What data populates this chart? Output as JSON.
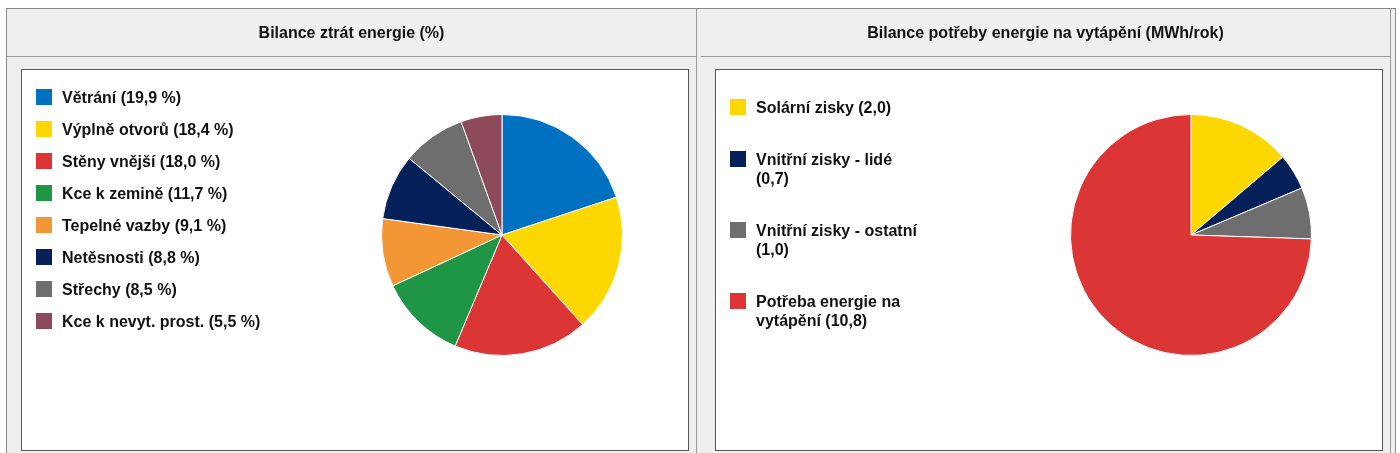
{
  "chart_data": [
    {
      "type": "pie",
      "title": "Bilance ztrát energie (%)",
      "legend": "left",
      "categories": [
        "Větrání (19,9 %)",
        "Výplně otvorů (18,4 %)",
        "Stěny vnější (18,0 %)",
        "Kce k zemině (11,7 %)",
        "Tepelné vazby (9,1 %)",
        "Netěsnosti (8,8 %)",
        "Střechy (8,5 %)",
        "Kce k nevyt. prost. (5,5 %)"
      ],
      "values": [
        19.9,
        18.4,
        18.0,
        11.7,
        9.1,
        8.8,
        8.5,
        5.5
      ],
      "colors": [
        "#0070c0",
        "#fcd800",
        "#dc3535",
        "#1e9646",
        "#f39635",
        "#06205a",
        "#6e6e6e",
        "#8c4a5a"
      ]
    },
    {
      "type": "pie",
      "title": "Bilance potřeby energie na vytápění (MWh/rok)",
      "legend": "left",
      "categories": [
        "Solární zisky (2,0)",
        "Vnitřní zisky - lidé (0,7)",
        "Vnitřní zisky - ostatní (1,0)",
        "Potřeba energie na vytápění (10,8)"
      ],
      "values": [
        2.0,
        0.7,
        1.0,
        10.8
      ],
      "colors": [
        "#fcd800",
        "#06205a",
        "#6e6e6e",
        "#dc3535"
      ]
    }
  ]
}
